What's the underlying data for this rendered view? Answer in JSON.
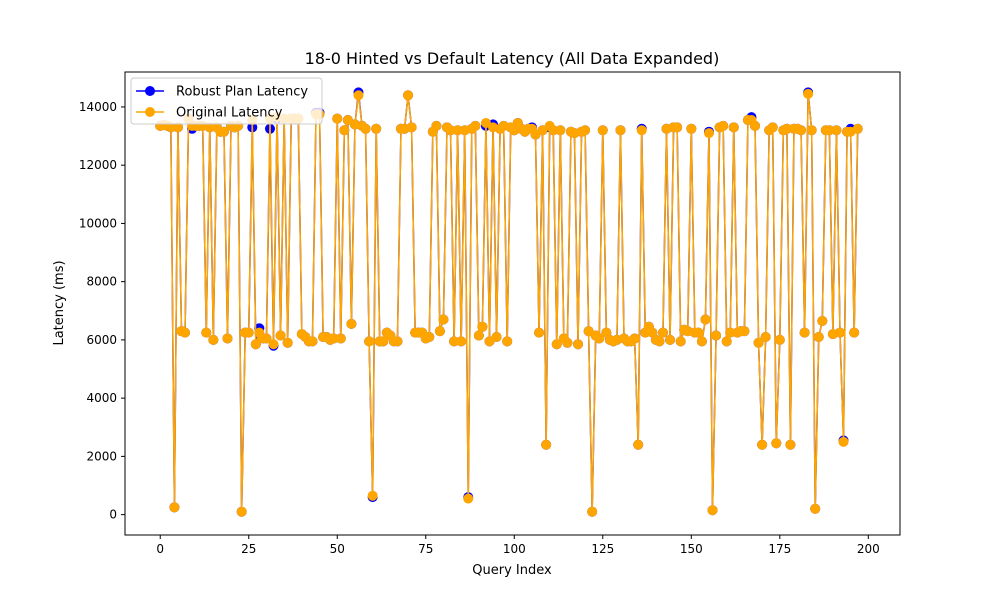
{
  "chart_data": {
    "type": "line",
    "title": "18-0 Hinted vs Default Latency (All Data Expanded)",
    "xlabel": "Query Index",
    "ylabel": "Latency (ms)",
    "xlim": [
      -9.95,
      208.95
    ],
    "ylim": [
      -700,
      15200
    ],
    "xticks": [
      0,
      25,
      50,
      75,
      100,
      125,
      150,
      175,
      200
    ],
    "yticks": [
      0,
      2000,
      4000,
      6000,
      8000,
      10000,
      12000,
      14000
    ],
    "grid": false,
    "legend_position": "top-left",
    "series": [
      {
        "name": "Robust Plan Latency",
        "color": "#0000ff",
        "values": [
          13350,
          13380,
          13350,
          13300,
          250,
          13300,
          6300,
          6250,
          13600,
          13250,
          13350,
          13350,
          13350,
          6250,
          13300,
          6000,
          13300,
          13150,
          13150,
          6050,
          13350,
          13300,
          13350,
          100,
          6250,
          6250,
          13300,
          5850,
          6400,
          6050,
          6050,
          13250,
          5800,
          13600,
          6150,
          13600,
          5900,
          13600,
          13600,
          13600,
          6200,
          6100,
          5950,
          5950,
          13800,
          13800,
          6100,
          6100,
          6000,
          6050,
          13600,
          6050,
          13200,
          13550,
          6550,
          13400,
          14500,
          13350,
          13250,
          5950,
          600,
          13250,
          5950,
          5950,
          6250,
          6150,
          5950,
          5950,
          13250,
          13250,
          14400,
          13300,
          6250,
          6250,
          6250,
          6050,
          6100,
          13150,
          13350,
          6300,
          6700,
          13300,
          13200,
          5950,
          13200,
          5950,
          13200,
          600,
          13250,
          13350,
          6150,
          6450,
          13350,
          5950,
          13400,
          6100,
          13250,
          13350,
          5950,
          13300,
          13200,
          13450,
          13250,
          13150,
          13250,
          13300,
          13050,
          6250,
          13200,
          2400,
          13300,
          13200,
          5850,
          13200,
          6050,
          5900,
          13150,
          13100,
          5850,
          13150,
          13200,
          6300,
          100,
          6150,
          6050,
          13200,
          6250,
          6000,
          5950,
          6000,
          13200,
          6050,
          5950,
          5950,
          6050,
          2400,
          13250,
          6250,
          6450,
          6250,
          6000,
          5950,
          6250,
          13250,
          6000,
          13300,
          13300,
          5950,
          6350,
          6300,
          13250,
          6250,
          6250,
          5950,
          6700,
          13150,
          150,
          6150,
          13300,
          13350,
          5950,
          6250,
          13300,
          6250,
          6300,
          6300,
          13550,
          13650,
          13350,
          5900,
          2400,
          6100,
          13200,
          13300,
          2450,
          6000,
          13200,
          13250,
          2400,
          13250,
          13250,
          13200,
          6250,
          14500,
          13200,
          200,
          6100,
          6650,
          13200,
          13200,
          6200,
          13200,
          6250,
          2550,
          13150,
          13250,
          6250,
          13250
        ]
      },
      {
        "name": "Original Latency",
        "color": "#ffa500",
        "values": [
          13350,
          13380,
          13350,
          13300,
          250,
          13300,
          6300,
          6250,
          13600,
          13350,
          13350,
          13350,
          13350,
          6250,
          13300,
          6000,
          13300,
          13150,
          13150,
          6050,
          13350,
          13300,
          13350,
          100,
          6250,
          6250,
          13550,
          5850,
          6250,
          6050,
          6050,
          13600,
          5850,
          13650,
          6150,
          13600,
          5900,
          13600,
          13600,
          13600,
          6200,
          6100,
          5950,
          5950,
          13750,
          13750,
          6100,
          6100,
          6000,
          6050,
          13600,
          6050,
          13200,
          13550,
          6550,
          13400,
          14400,
          13350,
          13250,
          5950,
          650,
          13250,
          5950,
          5950,
          6250,
          6150,
          5950,
          5950,
          13250,
          13250,
          14400,
          13300,
          6250,
          6250,
          6250,
          6050,
          6100,
          13150,
          13350,
          6300,
          6700,
          13300,
          13200,
          5950,
          13200,
          5950,
          13200,
          550,
          13250,
          13350,
          6150,
          6450,
          13450,
          5950,
          13300,
          6100,
          13250,
          13350,
          5950,
          13300,
          13200,
          13450,
          13250,
          13150,
          13250,
          13250,
          13050,
          6250,
          13200,
          2400,
          13350,
          13200,
          5850,
          13200,
          6050,
          5900,
          13150,
          13100,
          5850,
          13150,
          13200,
          6300,
          100,
          6150,
          6050,
          13200,
          6250,
          6000,
          5950,
          6000,
          13200,
          6050,
          5950,
          5950,
          6050,
          2400,
          13200,
          6250,
          6450,
          6250,
          6000,
          5950,
          6250,
          13250,
          6000,
          13300,
          13300,
          5950,
          6350,
          6300,
          13250,
          6250,
          6250,
          5950,
          6700,
          13100,
          150,
          6150,
          13300,
          13350,
          5950,
          6250,
          13300,
          6250,
          6300,
          6300,
          13550,
          13550,
          13350,
          5900,
          2400,
          6100,
          13200,
          13300,
          2450,
          6000,
          13200,
          13250,
          2400,
          13250,
          13250,
          13200,
          6250,
          14450,
          13200,
          200,
          6100,
          6650,
          13200,
          13200,
          6200,
          13200,
          6250,
          2500,
          13150,
          13150,
          6250,
          13250
        ]
      }
    ]
  }
}
